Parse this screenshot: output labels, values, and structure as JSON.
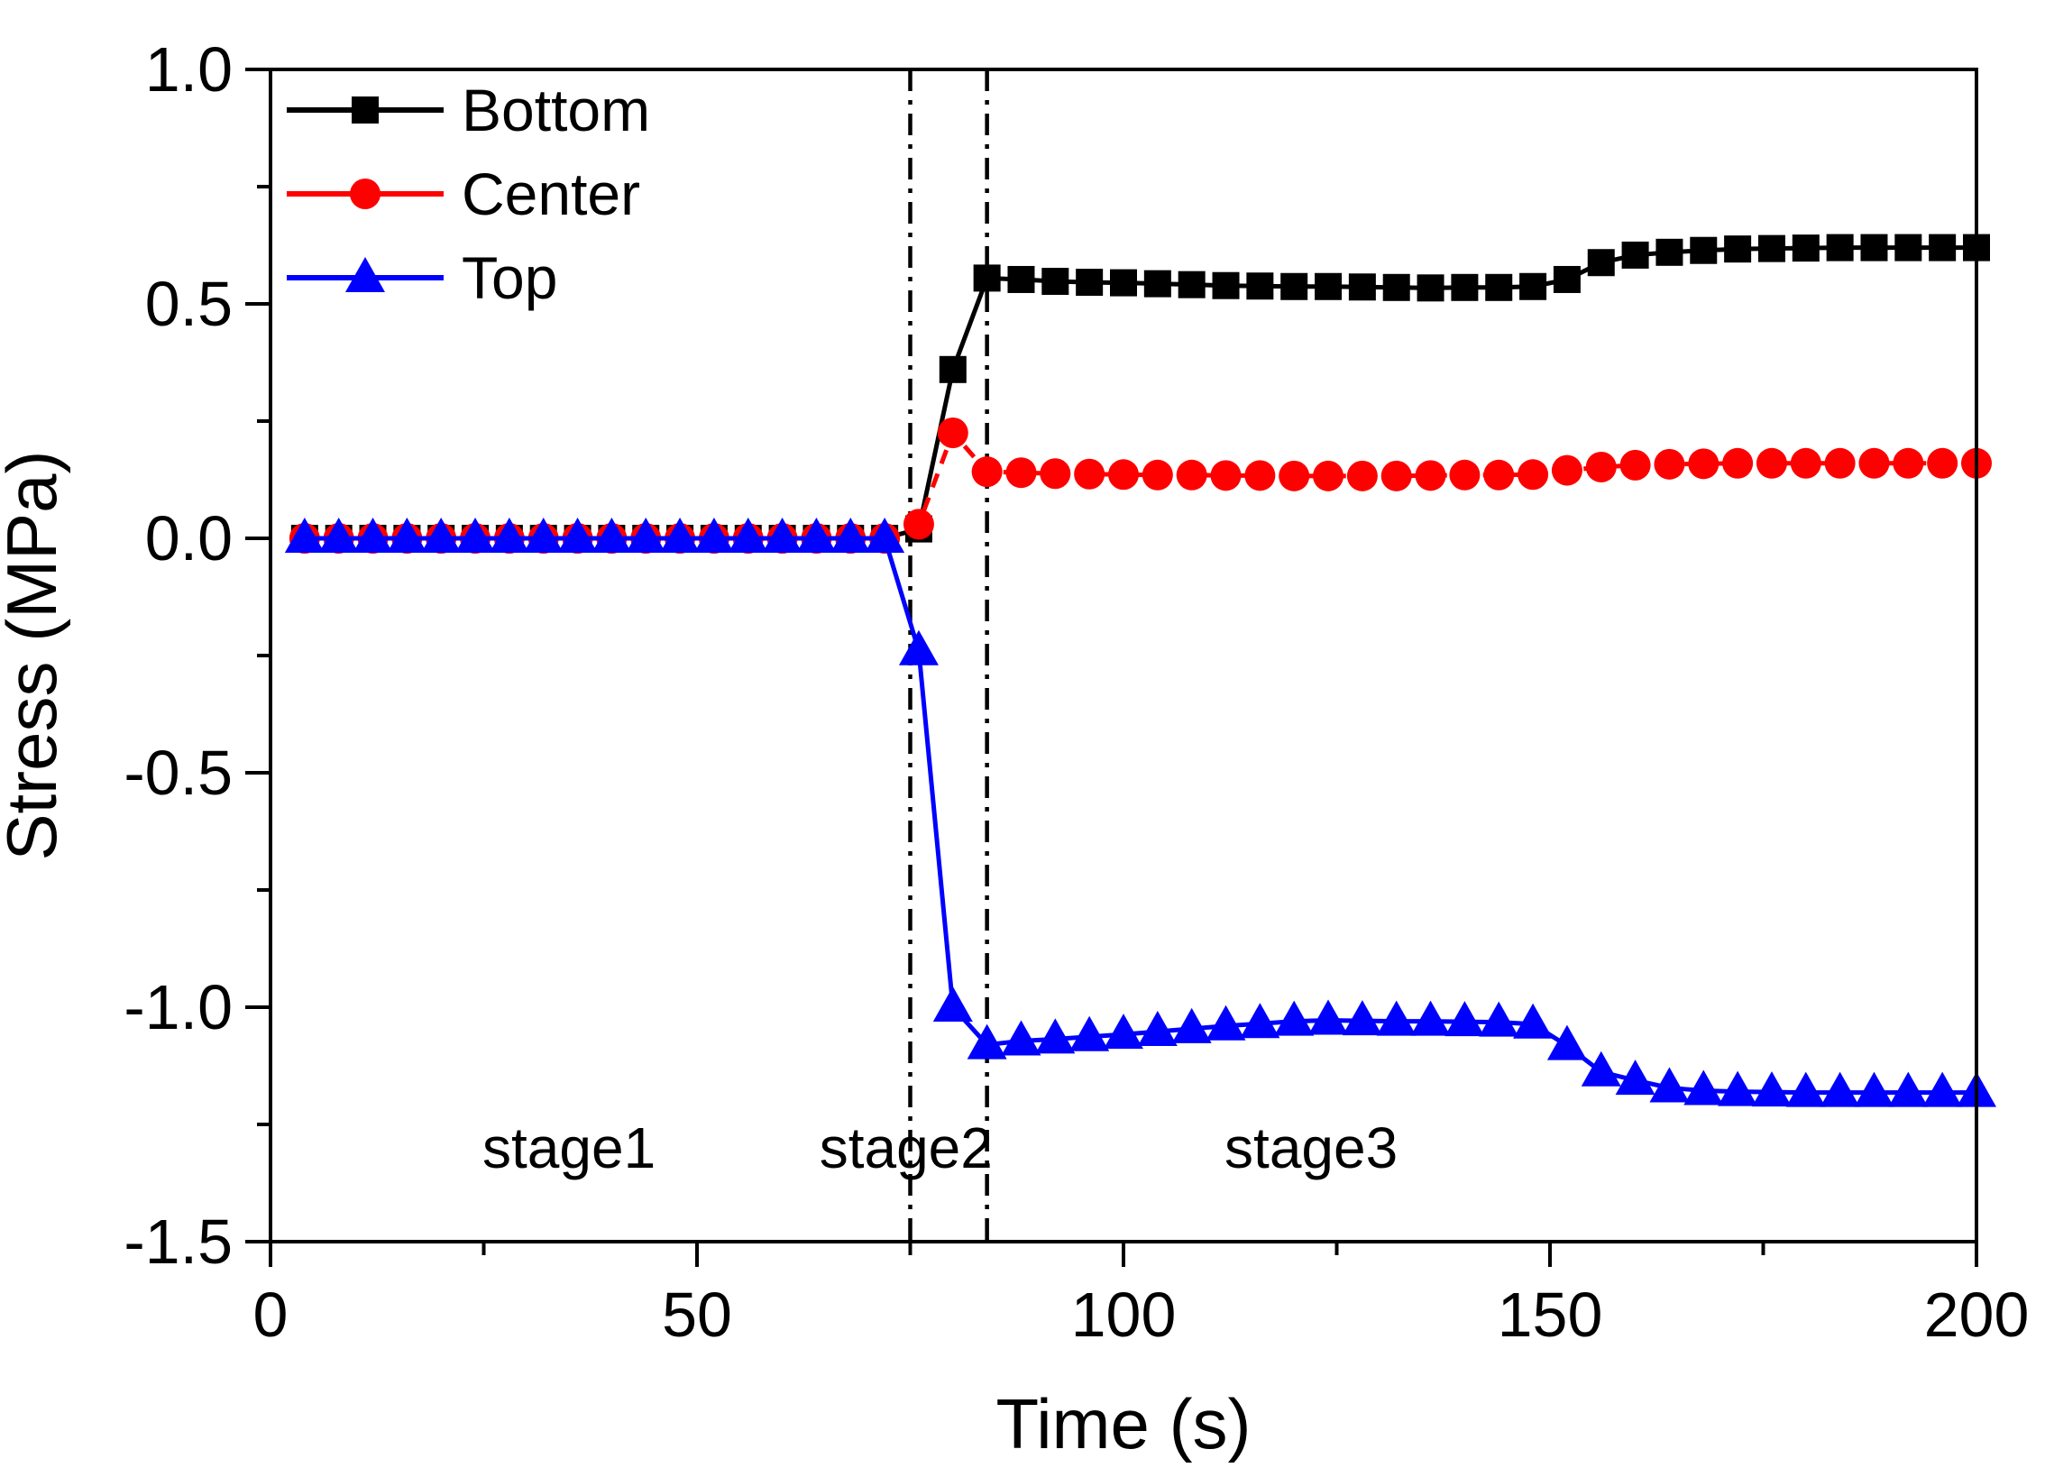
{
  "chart_data": {
    "type": "line",
    "title": "",
    "xlabel": "Time (s)",
    "ylabel": "Stress (MPa)",
    "xlim": [
      0,
      200
    ],
    "ylim": [
      -1.5,
      1.0
    ],
    "grid": false,
    "background": "#ffffff",
    "axis_color": "#000000",
    "x_major_ticks": [
      0,
      50,
      100,
      150,
      200
    ],
    "x_minor_ticks": [
      25,
      75,
      125,
      175
    ],
    "x_tick_labels": [
      "0",
      "50",
      "100",
      "150",
      "200"
    ],
    "y_major_ticks": [
      1.0,
      0.5,
      0.0,
      -0.5,
      -1.0,
      -1.5
    ],
    "y_minor_ticks": [
      0.75,
      0.25,
      -0.25,
      -0.75,
      -1.25
    ],
    "y_tick_labels": [
      "1.0",
      "0.5",
      "0.0",
      "-0.5",
      "-1.0",
      "-1.5"
    ],
    "legend": {
      "position": "top-left"
    },
    "vlines": [
      {
        "x": 75,
        "style": "dash-dot",
        "color": "#000000"
      },
      {
        "x": 84,
        "style": "dash-dot",
        "color": "#000000"
      }
    ],
    "annotations": [
      {
        "text": "stage1",
        "x": 35,
        "y": -1.3
      },
      {
        "text": "stage2",
        "x": 74.5,
        "y": -1.3
      },
      {
        "text": "stage3",
        "x": 122,
        "y": -1.3
      }
    ],
    "x": [
      4,
      8,
      12,
      16,
      20,
      24,
      28,
      32,
      36,
      40,
      44,
      48,
      52,
      56,
      60,
      64,
      68,
      72,
      76,
      80,
      84,
      88,
      92,
      96,
      100,
      104,
      108,
      112,
      116,
      120,
      124,
      128,
      132,
      136,
      140,
      144,
      148,
      152,
      156,
      160,
      164,
      168,
      172,
      176,
      180,
      184,
      188,
      192,
      196,
      200
    ],
    "series": [
      {
        "name": "Bottom",
        "color": "#000000",
        "marker": "square",
        "line": "solid",
        "values": [
          0,
          0,
          0,
          0,
          0,
          0,
          0,
          0,
          0,
          0,
          0,
          0,
          0,
          0,
          0,
          0,
          0,
          0,
          0.02,
          0.36,
          0.555,
          0.552,
          0.548,
          0.546,
          0.545,
          0.543,
          0.541,
          0.539,
          0.538,
          0.537,
          0.537,
          0.536,
          0.535,
          0.534,
          0.535,
          0.535,
          0.537,
          0.552,
          0.588,
          0.604,
          0.61,
          0.614,
          0.617,
          0.618,
          0.619,
          0.62,
          0.62,
          0.62,
          0.62,
          0.62
        ]
      },
      {
        "name": "Center",
        "color": "#ff0000",
        "marker": "circle",
        "line": "dash",
        "values": [
          0,
          0,
          0,
          0,
          0,
          0,
          0,
          0,
          0,
          0,
          0,
          0,
          0,
          0,
          0,
          0,
          0,
          0,
          0.03,
          0.225,
          0.142,
          0.14,
          0.138,
          0.137,
          0.136,
          0.135,
          0.135,
          0.134,
          0.134,
          0.133,
          0.133,
          0.133,
          0.133,
          0.134,
          0.135,
          0.135,
          0.136,
          0.145,
          0.152,
          0.156,
          0.158,
          0.159,
          0.16,
          0.16,
          0.16,
          0.16,
          0.16,
          0.16,
          0.16,
          0.16
        ]
      },
      {
        "name": "Top",
        "color": "#0000ff",
        "marker": "triangle",
        "line": "solid",
        "values": [
          0,
          0,
          0,
          0,
          0,
          0,
          0,
          0,
          0,
          0,
          0,
          0,
          0,
          0,
          0,
          0,
          0,
          0,
          -0.24,
          -1.0,
          -1.08,
          -1.072,
          -1.068,
          -1.063,
          -1.058,
          -1.052,
          -1.046,
          -1.04,
          -1.035,
          -1.03,
          -1.028,
          -1.029,
          -1.03,
          -1.03,
          -1.031,
          -1.032,
          -1.036,
          -1.082,
          -1.138,
          -1.156,
          -1.172,
          -1.178,
          -1.18,
          -1.181,
          -1.182,
          -1.182,
          -1.182,
          -1.182,
          -1.182,
          -1.182
        ]
      }
    ]
  }
}
